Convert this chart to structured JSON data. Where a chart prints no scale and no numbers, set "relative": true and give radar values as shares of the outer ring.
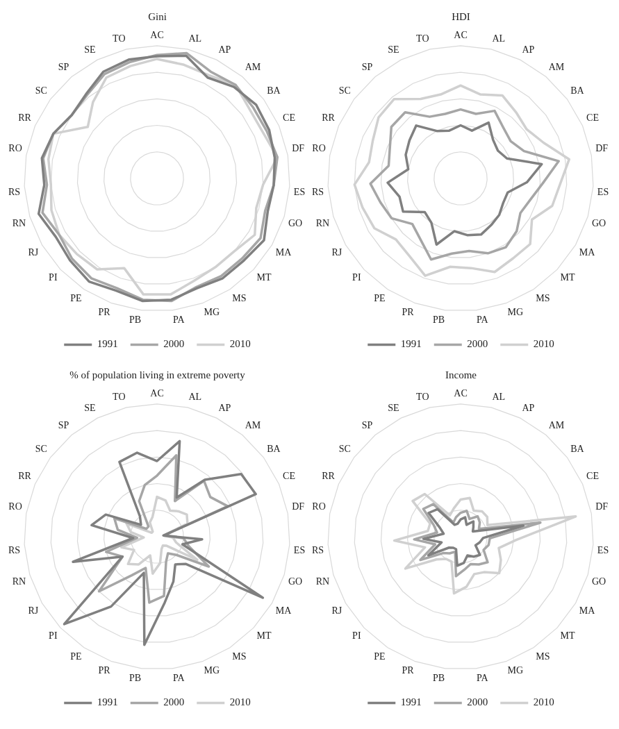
{
  "chart_data": [
    {
      "type": "radar",
      "title": "Gini",
      "relative": true,
      "grid": true,
      "legend": "bottom",
      "categories": [
        "AC",
        "AL",
        "AP",
        "AM",
        "BA",
        "CE",
        "DF",
        "ES",
        "GO",
        "MA",
        "MT",
        "MS",
        "MG",
        "PA",
        "PB",
        "PR",
        "PE",
        "PI",
        "RJ",
        "RN",
        "RS",
        "RO",
        "RR",
        "SC",
        "SP",
        "SE",
        "TO"
      ],
      "series": [
        {
          "name": "1991",
          "color": "#808080",
          "values": [
            0.92,
            0.95,
            0.85,
            0.9,
            0.93,
            0.92,
            0.9,
            0.88,
            0.87,
            0.93,
            0.9,
            0.9,
            0.88,
            0.92,
            0.93,
            0.9,
            0.93,
            0.9,
            0.88,
            0.93,
            0.85,
            0.88,
            0.85,
            0.8,
            0.83,
            0.9,
            0.92
          ]
        },
        {
          "name": "2000",
          "color": "#a6a6a6",
          "values": [
            0.93,
            0.97,
            0.9,
            0.92,
            0.9,
            0.9,
            0.92,
            0.88,
            0.85,
            0.9,
            0.88,
            0.88,
            0.87,
            0.93,
            0.92,
            0.88,
            0.9,
            0.88,
            0.85,
            0.9,
            0.83,
            0.87,
            0.85,
            0.8,
            0.82,
            0.88,
            0.9
          ]
        },
        {
          "name": "2010",
          "color": "#d0d0d0",
          "values": [
            0.9,
            0.88,
            0.87,
            0.92,
            0.87,
            0.87,
            0.92,
            0.8,
            0.78,
            0.85,
            0.8,
            0.8,
            0.82,
            0.88,
            0.88,
            0.72,
            0.82,
            0.83,
            0.85,
            0.83,
            0.8,
            0.83,
            0.85,
            0.65,
            0.75,
            0.85,
            0.87
          ]
        }
      ]
    },
    {
      "type": "radar",
      "title": "HDI",
      "relative": true,
      "grid": true,
      "legend": "bottom",
      "categories": [
        "AC",
        "AL",
        "AP",
        "AM",
        "BA",
        "CE",
        "DF",
        "ES",
        "GO",
        "MA",
        "MT",
        "MS",
        "MG",
        "PA",
        "PB",
        "PR",
        "PE",
        "PI",
        "RJ",
        "RN",
        "RS",
        "RO",
        "RR",
        "SC",
        "SP",
        "SE",
        "TO"
      ],
      "series": [
        {
          "name": "1991",
          "color": "#808080",
          "values": [
            0.4,
            0.37,
            0.47,
            0.38,
            0.35,
            0.38,
            0.62,
            0.5,
            0.37,
            0.37,
            0.4,
            0.42,
            0.45,
            0.43,
            0.4,
            0.53,
            0.4,
            0.37,
            0.5,
            0.48,
            0.55,
            0.4,
            0.45,
            0.48,
            0.52,
            0.4,
            0.37
          ]
        },
        {
          "name": "2000",
          "color": "#a6a6a6",
          "values": [
            0.52,
            0.5,
            0.57,
            0.5,
            0.47,
            0.52,
            0.75,
            0.62,
            0.55,
            0.52,
            0.58,
            0.62,
            0.6,
            0.55,
            0.57,
            0.65,
            0.55,
            0.5,
            0.6,
            0.63,
            0.68,
            0.55,
            0.58,
            0.65,
            0.65,
            0.52,
            0.5
          ]
        },
        {
          "name": "2010",
          "color": "#d0d0d0",
          "values": [
            0.7,
            0.65,
            0.7,
            0.65,
            0.62,
            0.68,
            0.83,
            0.75,
            0.72,
            0.62,
            0.72,
            0.72,
            0.75,
            0.68,
            0.67,
            0.78,
            0.7,
            0.67,
            0.75,
            0.77,
            0.8,
            0.7,
            0.72,
            0.77,
            0.78,
            0.67,
            0.65
          ]
        }
      ]
    },
    {
      "type": "radar",
      "title": "% of population living in extreme poverty",
      "relative": true,
      "grid": true,
      "legend": "bottom",
      "categories": [
        "AC",
        "AL",
        "AP",
        "AM",
        "BA",
        "CE",
        "DF",
        "ES",
        "GO",
        "MA",
        "MT",
        "MS",
        "MG",
        "PA",
        "PB",
        "PR",
        "PE",
        "PI",
        "RJ",
        "RN",
        "RS",
        "RO",
        "RR",
        "SC",
        "SP",
        "SE",
        "TO"
      ],
      "series": [
        {
          "name": "1991",
          "color": "#808080",
          "values": [
            0.57,
            0.74,
            0.33,
            0.56,
            0.79,
            0.81,
            0.05,
            0.34,
            0.2,
            0.92,
            0.3,
            0.25,
            0.36,
            0.5,
            0.82,
            0.29,
            0.63,
            0.96,
            0.3,
            0.66,
            0.18,
            0.5,
            0.42,
            0.15,
            0.2,
            0.63,
            0.65
          ]
        },
        {
          "name": "2000",
          "color": "#a6a6a6",
          "values": [
            0.46,
            0.63,
            0.3,
            0.55,
            0.5,
            0.58,
            0.05,
            0.2,
            0.25,
            0.45,
            0.2,
            0.15,
            0.2,
            0.45,
            0.5,
            0.25,
            0.35,
            0.6,
            0.3,
            0.4,
            0.15,
            0.3,
            0.35,
            0.1,
            0.1,
            0.3,
            0.4
          ]
        },
        {
          "name": "2010",
          "color": "#d0d0d0",
          "values": [
            0.3,
            0.28,
            0.22,
            0.25,
            0.28,
            0.25,
            0.05,
            0.12,
            0.15,
            0.35,
            0.1,
            0.08,
            0.1,
            0.2,
            0.28,
            0.15,
            0.25,
            0.3,
            0.2,
            0.28,
            0.1,
            0.2,
            0.25,
            0.05,
            0.05,
            0.12,
            0.15
          ]
        }
      ]
    },
    {
      "type": "radar",
      "title": "Income",
      "relative": true,
      "grid": true,
      "legend": "bottom",
      "categories": [
        "AC",
        "AL",
        "AP",
        "AM",
        "BA",
        "CE",
        "DF",
        "ES",
        "GO",
        "MA",
        "MT",
        "MS",
        "MG",
        "PA",
        "PB",
        "PR",
        "PE",
        "PI",
        "RJ",
        "RN",
        "RS",
        "RO",
        "RR",
        "SC",
        "SP",
        "SE",
        "TO"
      ],
      "series": [
        {
          "name": "1991",
          "color": "#808080",
          "values": [
            0.13,
            0.15,
            0.1,
            0.15,
            0.12,
            0.1,
            0.48,
            0.17,
            0.15,
            0.13,
            0.2,
            0.18,
            0.15,
            0.2,
            0.22,
            0.1,
            0.1,
            0.12,
            0.28,
            0.15,
            0.28,
            0.13,
            0.17,
            0.3,
            0.27,
            0.1,
            0.1
          ]
        },
        {
          "name": "2000",
          "color": "#a6a6a6",
          "values": [
            0.18,
            0.2,
            0.15,
            0.2,
            0.18,
            0.15,
            0.61,
            0.22,
            0.22,
            0.2,
            0.28,
            0.25,
            0.22,
            0.25,
            0.3,
            0.12,
            0.15,
            0.18,
            0.35,
            0.2,
            0.35,
            0.18,
            0.22,
            0.35,
            0.32,
            0.12,
            0.15
          ]
        },
        {
          "name": "2010",
          "color": "#d0d0d0",
          "values": [
            0.28,
            0.3,
            0.22,
            0.25,
            0.25,
            0.22,
            0.88,
            0.42,
            0.3,
            0.35,
            0.4,
            0.32,
            0.3,
            0.38,
            0.43,
            0.2,
            0.2,
            0.25,
            0.48,
            0.28,
            0.5,
            0.25,
            0.25,
            0.45,
            0.42,
            0.18,
            0.22
          ]
        }
      ]
    }
  ]
}
